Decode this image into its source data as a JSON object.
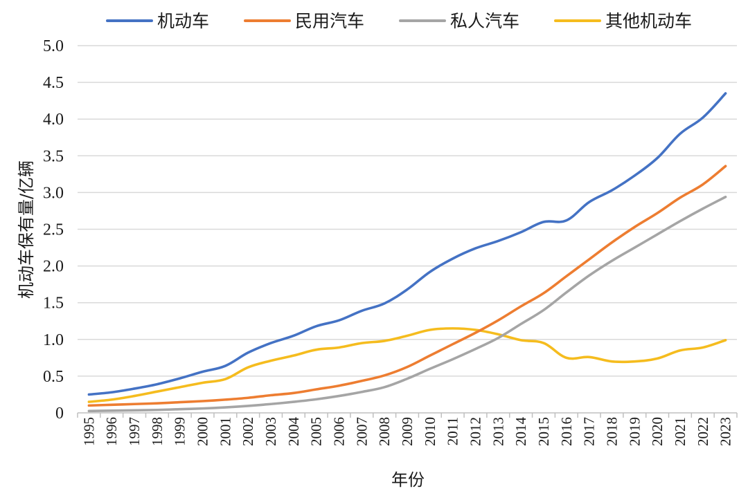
{
  "chart_data": {
    "type": "line",
    "xlabel": "年份",
    "ylabel": "机动车保有量/亿辆",
    "ylim": [
      0,
      5.0
    ],
    "y_ticks": [
      "0",
      "0.5",
      "1.0",
      "1.5",
      "2.0",
      "2.5",
      "3.0",
      "3.5",
      "4.0",
      "4.5",
      "5.0"
    ],
    "grid": true,
    "legend_position": "top",
    "categories": [
      "1995",
      "1996",
      "1997",
      "1998",
      "1999",
      "2000",
      "2001",
      "2002",
      "2003",
      "2004",
      "2005",
      "2006",
      "2007",
      "2008",
      "2009",
      "2010",
      "2011",
      "2012",
      "2013",
      "2014",
      "2015",
      "2016",
      "2017",
      "2018",
      "2019",
      "2020",
      "2021",
      "2022",
      "2023"
    ],
    "series": [
      {
        "name": "机动车",
        "color": "#4472c4",
        "values": [
          0.25,
          0.28,
          0.33,
          0.39,
          0.47,
          0.56,
          0.64,
          0.82,
          0.95,
          1.05,
          1.18,
          1.26,
          1.39,
          1.49,
          1.68,
          1.92,
          2.1,
          2.24,
          2.34,
          2.46,
          2.6,
          2.62,
          2.87,
          3.03,
          3.23,
          3.47,
          3.8,
          4.02,
          4.35
        ]
      },
      {
        "name": "民用汽车",
        "color": "#ed7d31",
        "values": [
          0.1,
          0.11,
          0.12,
          0.13,
          0.145,
          0.16,
          0.18,
          0.205,
          0.24,
          0.27,
          0.32,
          0.37,
          0.435,
          0.51,
          0.625,
          0.78,
          0.935,
          1.09,
          1.26,
          1.45,
          1.63,
          1.86,
          2.09,
          2.32,
          2.53,
          2.72,
          2.93,
          3.11,
          3.36
        ]
      },
      {
        "name": "私人汽车",
        "color": "#a5a5a5",
        "values": [
          0.025,
          0.03,
          0.035,
          0.04,
          0.05,
          0.06,
          0.075,
          0.095,
          0.12,
          0.15,
          0.185,
          0.23,
          0.285,
          0.35,
          0.465,
          0.6,
          0.73,
          0.87,
          1.02,
          1.21,
          1.4,
          1.64,
          1.87,
          2.07,
          2.25,
          2.43,
          2.61,
          2.78,
          2.94
        ]
      },
      {
        "name": "其他机动车",
        "color": "#f5bc1e",
        "values": [
          0.15,
          0.18,
          0.23,
          0.29,
          0.35,
          0.41,
          0.46,
          0.62,
          0.71,
          0.78,
          0.86,
          0.89,
          0.95,
          0.98,
          1.05,
          1.13,
          1.15,
          1.13,
          1.07,
          0.99,
          0.95,
          0.75,
          0.76,
          0.7,
          0.7,
          0.74,
          0.85,
          0.89,
          0.99
        ]
      }
    ]
  }
}
